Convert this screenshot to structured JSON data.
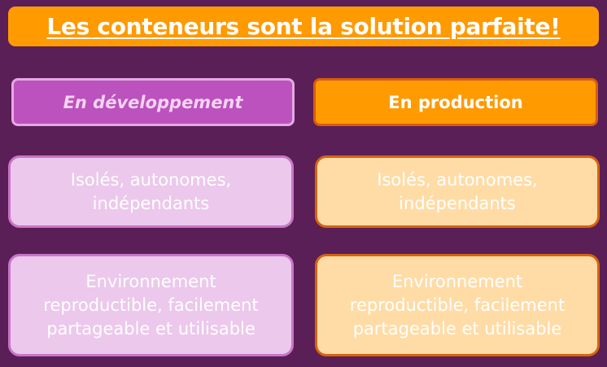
{
  "title": "Les conteneurs sont la solution parfaite!",
  "columns": [
    {
      "header": "En développement",
      "cards": [
        "Isolés, autonomes, indépendants",
        "Environnement reproductible, facilement partageable et utilisable"
      ]
    },
    {
      "header": "En production",
      "cards": [
        "Isolés, autonomes, indépendants",
        "Environnement reproductible, facilement partageable et utilisable"
      ]
    }
  ],
  "colors": {
    "background": "#5a1f56",
    "orange": "#ff9a00",
    "purple": "#bb52bd",
    "light_purple": "#ecc8ec",
    "light_orange": "#ffdca6"
  }
}
